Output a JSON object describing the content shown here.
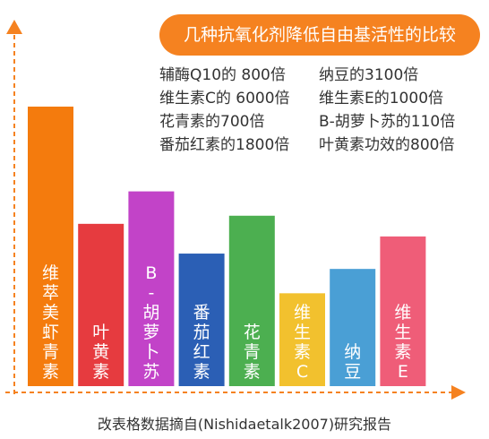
{
  "chart_data": {
    "type": "bar",
    "title": "几种抗氧化剂降低自由基活性的比较",
    "categories": [
      "维萃美虾青素",
      "叶黄素",
      "B-胡萝卜苏",
      "番茄红素",
      "花青素",
      "维生素C",
      "纳豆",
      "维生素E"
    ],
    "values": [
      310,
      180,
      216,
      147,
      189,
      103,
      130,
      166
    ],
    "colors": [
      "#f47b0d",
      "#e63b3f",
      "#c243c8",
      "#2b5fb5",
      "#4caf50",
      "#f2c12e",
      "#4a9fd5",
      "#ef5d78"
    ],
    "comparisons": [
      [
        "辅酶Q10的 800倍",
        "纳豆的3100倍"
      ],
      [
        "维生素C的 6000倍",
        "维生素E的1000倍"
      ],
      [
        "花青素的700倍",
        "B-胡萝卜苏的110倍"
      ],
      [
        "番茄红素的1800倍",
        "叶黄素功效的800倍"
      ]
    ],
    "source": "改表格数据摘自(Nishidaetalk2007)研究报告",
    "title_color": "#f58220",
    "axis_color": "#f58220"
  }
}
